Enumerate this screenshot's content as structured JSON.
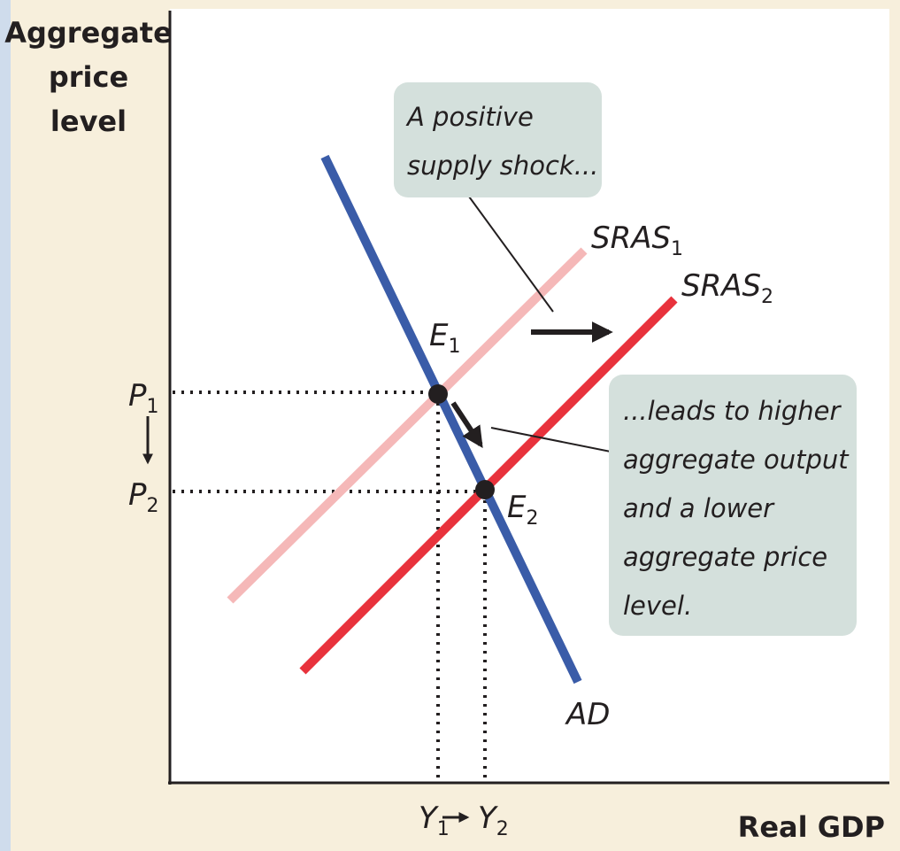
{
  "axes": {
    "y_label": [
      "Aggregate",
      "price",
      "level"
    ],
    "x_label": "Real GDP"
  },
  "curves": [
    {
      "label": "SRAS",
      "sub": "1"
    },
    {
      "label": "SRAS",
      "sub": "2"
    },
    {
      "label": "AD"
    }
  ],
  "points": [
    {
      "label": "E",
      "sub": "1"
    },
    {
      "label": "E",
      "sub": "2"
    }
  ],
  "price_labels": [
    {
      "label": "P",
      "sub": "1"
    },
    {
      "label": "P",
      "sub": "2"
    }
  ],
  "output_labels": [
    {
      "label": "Y",
      "sub": "1"
    },
    {
      "label": "Y",
      "sub": "2"
    }
  ],
  "callouts": [
    {
      "lines": [
        "A positive",
        "supply shock..."
      ]
    },
    {
      "lines": [
        "...leads to higher",
        "aggregate output",
        "and a lower",
        "aggregate price",
        "level."
      ]
    }
  ]
}
